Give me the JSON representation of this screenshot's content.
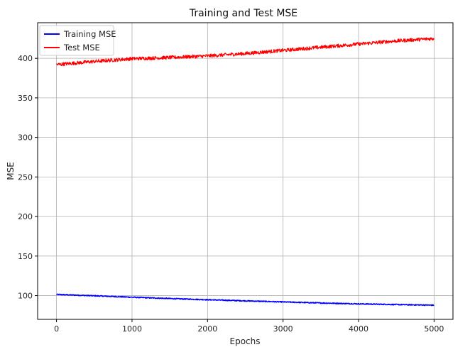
{
  "chart_data": {
    "type": "line",
    "title": "Training and Test MSE",
    "xlabel": "Epochs",
    "ylabel": "MSE",
    "xlim": [
      -250,
      5250
    ],
    "ylim": [
      70,
      445
    ],
    "xticks": [
      0,
      1000,
      2000,
      3000,
      4000,
      5000
    ],
    "yticks": [
      100,
      150,
      200,
      250,
      300,
      350,
      400
    ],
    "grid": true,
    "legend_position": "top-left",
    "x": [
      0,
      500,
      1000,
      1500,
      2000,
      2500,
      3000,
      3500,
      4000,
      4500,
      5000
    ],
    "series": [
      {
        "name": "Training MSE",
        "color": "#0000ff",
        "values": [
          101.5,
          99.8,
          98.0,
          96.3,
          94.8,
          93.4,
          92.0,
          90.7,
          89.6,
          88.7,
          87.9
        ],
        "noise": 0.6
      },
      {
        "name": "Test MSE",
        "color": "#ff0000",
        "values": [
          392,
          396,
          399.5,
          401,
          403,
          406,
          410,
          414,
          418,
          422,
          425
        ],
        "noise": 2.2
      }
    ]
  }
}
